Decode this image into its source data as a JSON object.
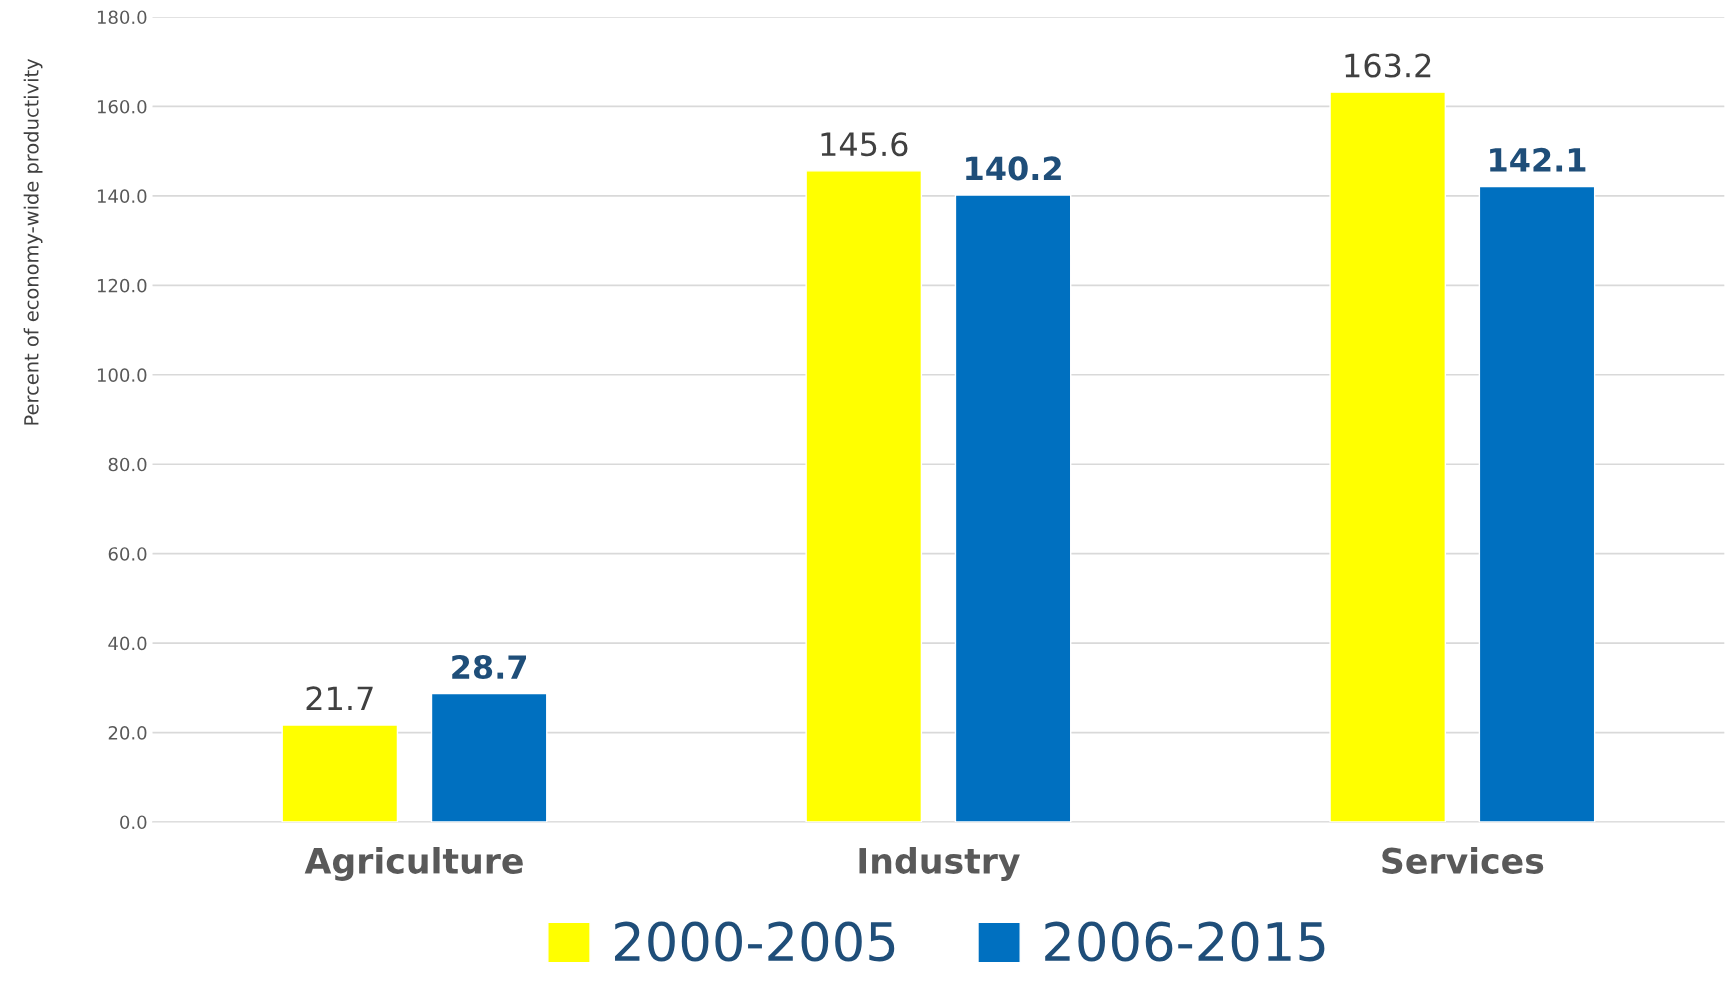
{
  "chart_data": {
    "type": "bar",
    "ylabel": "Percent of economy-wide productivity",
    "categories": [
      "Agriculture",
      "Industry",
      "Services"
    ],
    "series": [
      {
        "name": "2000-2005",
        "color": "#ffff00",
        "values": [
          21.7,
          145.6,
          163.2
        ]
      },
      {
        "name": "2006-2015",
        "color": "#0070c0",
        "values": [
          28.7,
          140.2,
          142.1
        ]
      }
    ],
    "ylim": [
      0,
      180
    ],
    "yticks": [
      {
        "value": 0,
        "label": "0.0"
      },
      {
        "value": 20,
        "label": "20.0"
      },
      {
        "value": 40,
        "label": "40.0"
      },
      {
        "value": 60,
        "label": "60.0"
      },
      {
        "value": 80,
        "label": "80.0"
      },
      {
        "value": 100,
        "label": "100.0"
      },
      {
        "value": 120,
        "label": "120.0"
      },
      {
        "value": 140,
        "label": "140.0"
      },
      {
        "value": 160,
        "label": "160.0"
      },
      {
        "value": 180,
        "label": "180.0"
      }
    ],
    "grid": "y",
    "legend": "bottom",
    "data_labels": true
  }
}
